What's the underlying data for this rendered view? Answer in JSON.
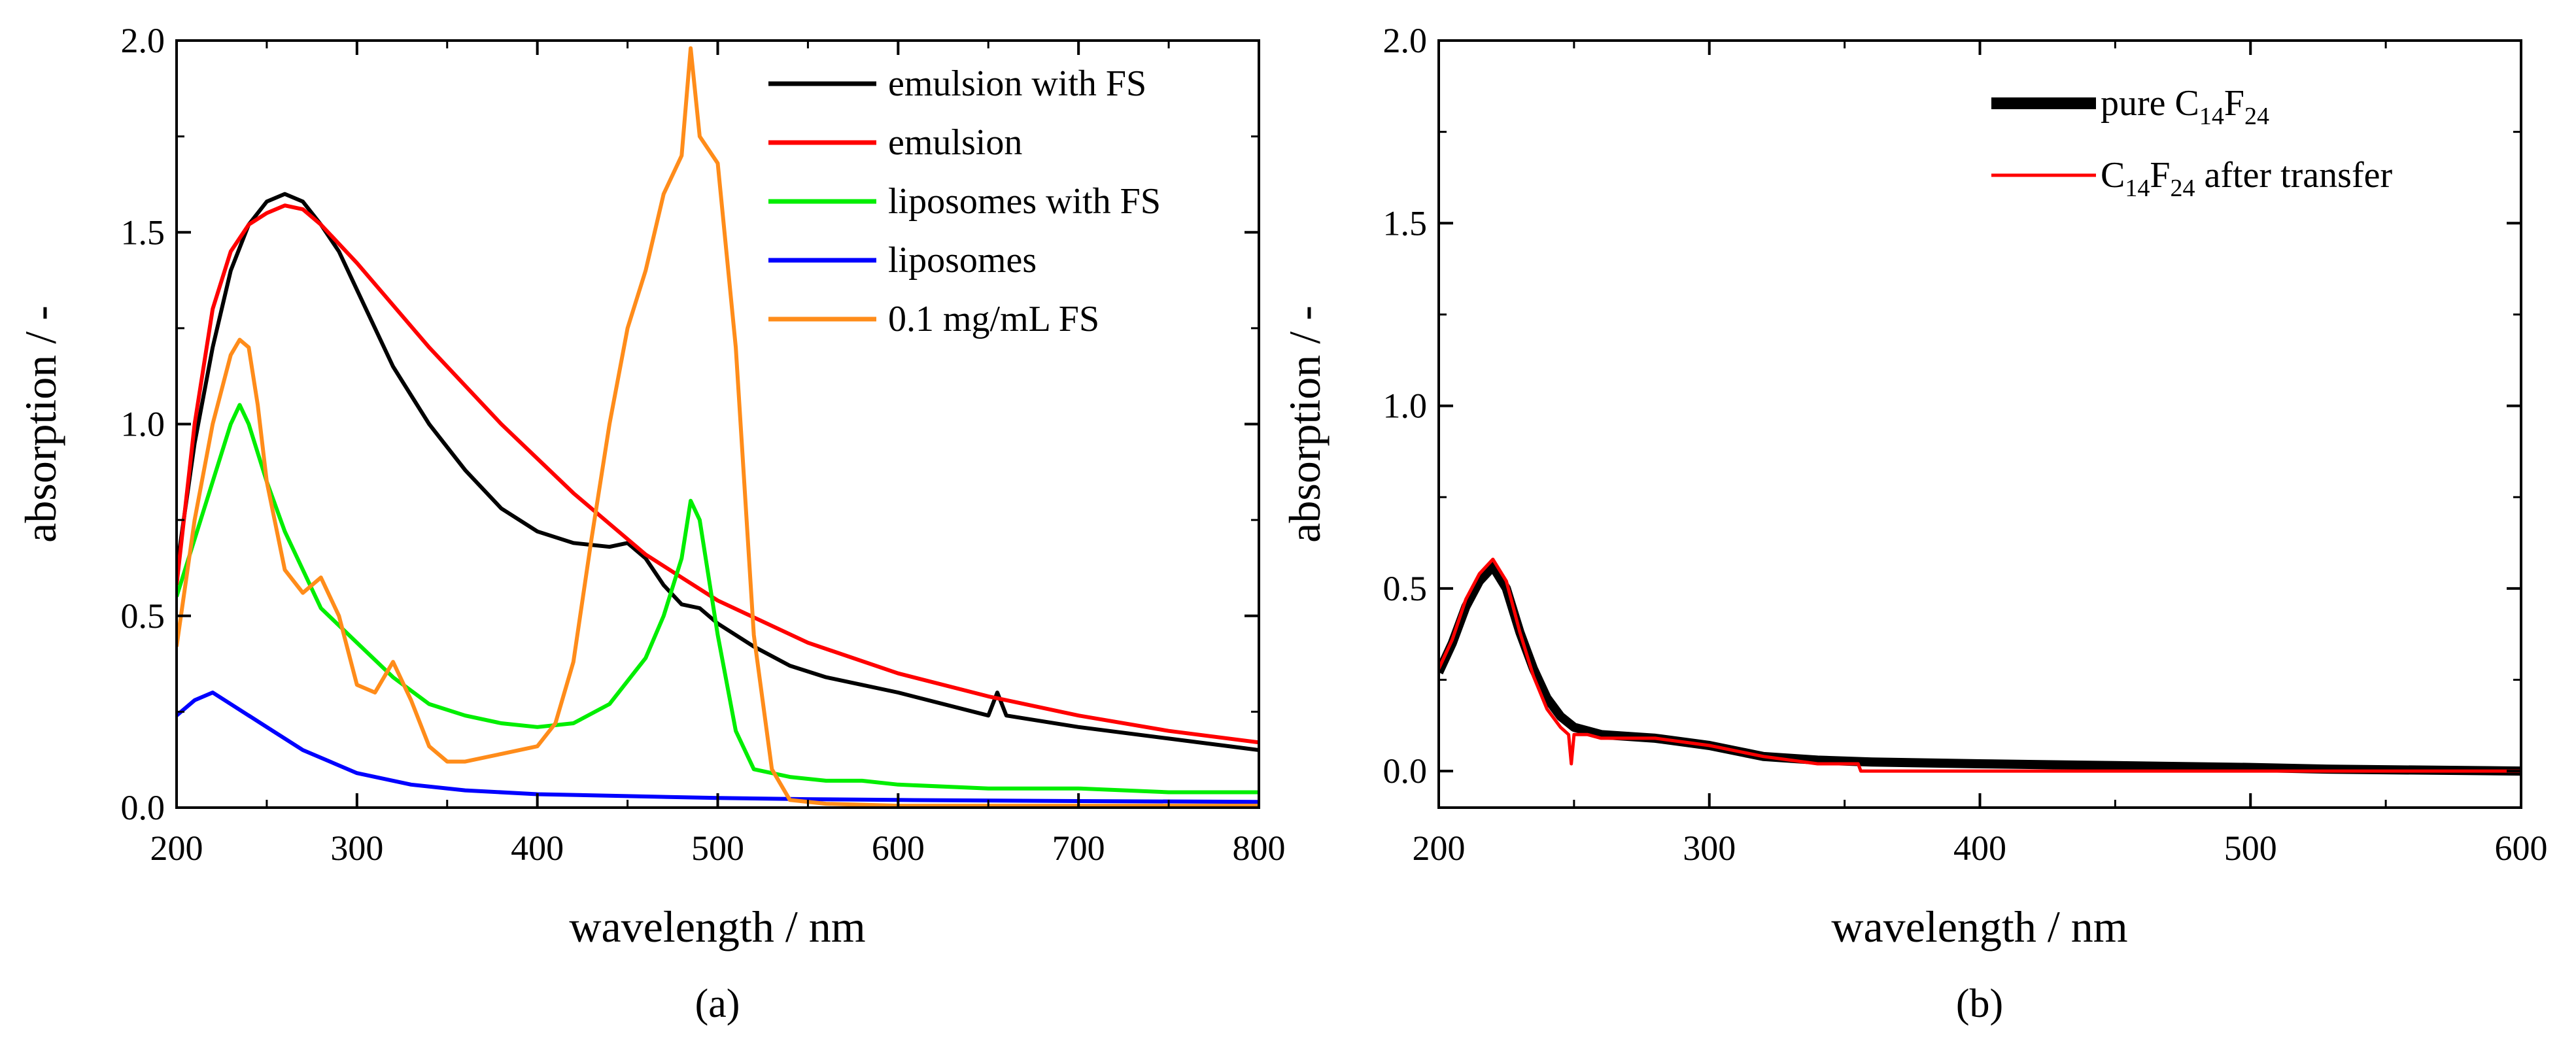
{
  "chart_data": [
    {
      "type": "line",
      "panel_label": "(a)",
      "xlabel": "wavelength / nm",
      "ylabel": "absorption / -",
      "xlim": [
        200,
        800
      ],
      "ylim": [
        0,
        2.0
      ],
      "xticks": [
        200,
        300,
        400,
        500,
        600,
        700,
        800
      ],
      "yticks": [
        0.0,
        0.5,
        1.0,
        1.5,
        2.0
      ],
      "ytick_labels": [
        "0.0",
        "0.5",
        "1.0",
        "1.5",
        "2.0"
      ],
      "grid": false,
      "legend_position": "top-right",
      "series": [
        {
          "name": "emulsion with FS",
          "color": "#000000",
          "x": [
            200,
            210,
            220,
            230,
            240,
            250,
            260,
            270,
            280,
            290,
            300,
            320,
            340,
            360,
            380,
            400,
            420,
            440,
            450,
            460,
            470,
            480,
            490,
            500,
            520,
            540,
            560,
            580,
            600,
            650,
            655,
            660,
            700,
            750,
            800
          ],
          "y": [
            0.62,
            0.95,
            1.2,
            1.4,
            1.52,
            1.58,
            1.6,
            1.58,
            1.52,
            1.45,
            1.35,
            1.15,
            1.0,
            0.88,
            0.78,
            0.72,
            0.69,
            0.68,
            0.69,
            0.65,
            0.58,
            0.53,
            0.52,
            0.48,
            0.42,
            0.37,
            0.34,
            0.32,
            0.3,
            0.24,
            0.3,
            0.24,
            0.21,
            0.18,
            0.15
          ]
        },
        {
          "name": "emulsion",
          "color": "#ff0000",
          "x": [
            200,
            210,
            220,
            230,
            240,
            250,
            260,
            270,
            280,
            300,
            320,
            340,
            360,
            380,
            400,
            420,
            440,
            460,
            480,
            500,
            550,
            600,
            650,
            700,
            750,
            800
          ],
          "y": [
            0.58,
            1.0,
            1.3,
            1.45,
            1.52,
            1.55,
            1.57,
            1.56,
            1.52,
            1.42,
            1.31,
            1.2,
            1.1,
            1.0,
            0.91,
            0.82,
            0.74,
            0.66,
            0.6,
            0.54,
            0.43,
            0.35,
            0.29,
            0.24,
            0.2,
            0.17
          ]
        },
        {
          "name": "liposomes with FS",
          "color": "#00ee00",
          "x": [
            200,
            210,
            220,
            230,
            235,
            240,
            250,
            260,
            270,
            280,
            300,
            320,
            340,
            360,
            380,
            400,
            420,
            440,
            460,
            470,
            480,
            485,
            490,
            500,
            510,
            520,
            540,
            560,
            580,
            600,
            650,
            700,
            750,
            800
          ],
          "y": [
            0.55,
            0.7,
            0.85,
            1.0,
            1.05,
            1.0,
            0.85,
            0.72,
            0.62,
            0.52,
            0.43,
            0.34,
            0.27,
            0.24,
            0.22,
            0.21,
            0.22,
            0.27,
            0.39,
            0.5,
            0.65,
            0.8,
            0.75,
            0.45,
            0.2,
            0.1,
            0.08,
            0.07,
            0.07,
            0.06,
            0.05,
            0.05,
            0.04,
            0.04
          ]
        },
        {
          "name": "liposomes",
          "color": "#0000ff",
          "x": [
            200,
            210,
            220,
            230,
            250,
            270,
            300,
            330,
            360,
            400,
            450,
            500,
            550,
            600,
            700,
            800
          ],
          "y": [
            0.24,
            0.28,
            0.3,
            0.27,
            0.21,
            0.15,
            0.09,
            0.06,
            0.045,
            0.035,
            0.03,
            0.025,
            0.022,
            0.02,
            0.017,
            0.015
          ]
        },
        {
          "name": "0.1 mg/mL FS",
          "color": "#ff8c1a",
          "x": [
            200,
            210,
            220,
            230,
            235,
            240,
            245,
            250,
            260,
            270,
            280,
            290,
            300,
            310,
            320,
            330,
            340,
            350,
            360,
            380,
            400,
            410,
            420,
            430,
            440,
            450,
            460,
            470,
            480,
            485,
            490,
            500,
            510,
            520,
            530,
            540,
            560,
            600,
            650,
            700,
            800
          ],
          "y": [
            0.42,
            0.75,
            1.0,
            1.18,
            1.22,
            1.2,
            1.05,
            0.85,
            0.62,
            0.56,
            0.6,
            0.5,
            0.32,
            0.3,
            0.38,
            0.28,
            0.16,
            0.12,
            0.12,
            0.14,
            0.16,
            0.22,
            0.38,
            0.7,
            1.0,
            1.25,
            1.4,
            1.6,
            1.7,
            1.98,
            1.75,
            1.68,
            1.2,
            0.45,
            0.1,
            0.02,
            0.01,
            0.005,
            0.005,
            0.005,
            0.005
          ]
        }
      ]
    },
    {
      "type": "line",
      "panel_label": "(b)",
      "xlabel": "wavelength / nm",
      "ylabel": "absorption / -",
      "xlim": [
        200,
        600
      ],
      "ylim": [
        -0.1,
        2.0
      ],
      "xticks": [
        200,
        300,
        400,
        500,
        600
      ],
      "yticks": [
        0.0,
        0.5,
        1.0,
        1.5,
        2.0
      ],
      "ytick_labels": [
        "0.0",
        "0.5",
        "1.0",
        "1.5",
        "2.0"
      ],
      "grid": false,
      "legend_position": "top-right",
      "series": [
        {
          "name_parts": [
            "pure C",
            "14",
            "F",
            "24",
            ""
          ],
          "color": "#000000",
          "x": [
            200,
            205,
            210,
            215,
            220,
            225,
            230,
            235,
            240,
            245,
            250,
            260,
            280,
            300,
            320,
            340,
            360,
            400,
            450,
            500,
            530,
            600
          ],
          "y": [
            0.27,
            0.35,
            0.45,
            0.52,
            0.56,
            0.5,
            0.38,
            0.28,
            0.2,
            0.15,
            0.12,
            0.1,
            0.09,
            0.07,
            0.04,
            0.03,
            0.025,
            0.02,
            0.015,
            0.01,
            0.005,
            0.0
          ]
        },
        {
          "name_parts": [
            "C",
            "14",
            "F",
            "24",
            " after transfer"
          ],
          "color": "#ff0000",
          "x": [
            200,
            205,
            210,
            215,
            220,
            225,
            230,
            235,
            240,
            245,
            248,
            249,
            250,
            251,
            255,
            260,
            280,
            300,
            320,
            340,
            355,
            356,
            400,
            500,
            600
          ],
          "y": [
            0.28,
            0.36,
            0.47,
            0.54,
            0.58,
            0.52,
            0.38,
            0.26,
            0.17,
            0.12,
            0.1,
            0.02,
            0.1,
            0.1,
            0.1,
            0.09,
            0.09,
            0.07,
            0.04,
            0.02,
            0.02,
            0.0,
            0.0,
            0.0,
            0.0
          ]
        }
      ]
    }
  ]
}
